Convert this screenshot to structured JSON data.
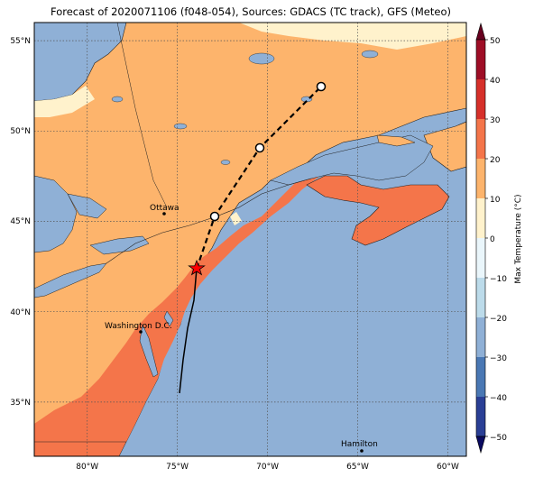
{
  "title": "Forecast of 2020071106 (f048-054), Sources: GDACS (TC track), GFS (Meteo)",
  "map": {
    "lon_range": [
      -83,
      -59.5
    ],
    "lat_range": [
      32,
      56
    ],
    "lon_ticks": [
      {
        "value": -80,
        "label": "80°W"
      },
      {
        "value": -75,
        "label": "75°W"
      },
      {
        "value": -70,
        "label": "70°W"
      },
      {
        "value": -65,
        "label": "65°W"
      },
      {
        "value": -60,
        "label": "60°W"
      }
    ],
    "lat_ticks": [
      {
        "value": 35,
        "label": "35°N"
      },
      {
        "value": 40,
        "label": "40°N"
      },
      {
        "value": 45,
        "label": "45°N"
      },
      {
        "value": 50,
        "label": "50°N"
      },
      {
        "value": 55,
        "label": "55°N"
      }
    ],
    "grid": "dotted",
    "colors": {
      "ocean": "#8fb0d6",
      "land_warm": "#fdb46c",
      "land_hot": "#f4754a",
      "land_mild": "#fff2cc"
    }
  },
  "cities": [
    {
      "name": "Ottawa",
      "lon": -75.7,
      "lat": 45.4
    },
    {
      "name": "Washington D.C.",
      "lon": -77.0,
      "lat": 38.9
    },
    {
      "name": "Hamilton",
      "lon": -64.8,
      "lat": 32.3
    }
  ],
  "track": {
    "past": [
      [
        -75.4,
        35.6
      ],
      [
        -75.0,
        37.5
      ],
      [
        -74.5,
        40.0
      ],
      [
        -74.0,
        42.5
      ]
    ],
    "forecast": [
      [
        -74.0,
        42.5
      ],
      [
        -73.0,
        45.3
      ],
      [
        -70.5,
        49.1
      ],
      [
        -66.8,
        52.5
      ]
    ],
    "current_position": [
      -73.9,
      42.5
    ],
    "forecast_points": [
      [
        -73.0,
        45.3
      ],
      [
        -70.5,
        49.1
      ],
      [
        -66.8,
        52.5
      ]
    ]
  },
  "colorbar": {
    "label": "Max Temperature (°C)",
    "ticks": [
      "50",
      "40",
      "30",
      "20",
      "10",
      "0",
      "−10",
      "−20",
      "−30",
      "−40",
      "−50"
    ],
    "colors": [
      "#67001f",
      "#b2182b",
      "#d6604d",
      "#f4a582",
      "#fddbc7",
      "#f7f7f7",
      "#d1e5f0",
      "#92c5de",
      "#4393c3",
      "#2166ac",
      "#053061"
    ]
  }
}
